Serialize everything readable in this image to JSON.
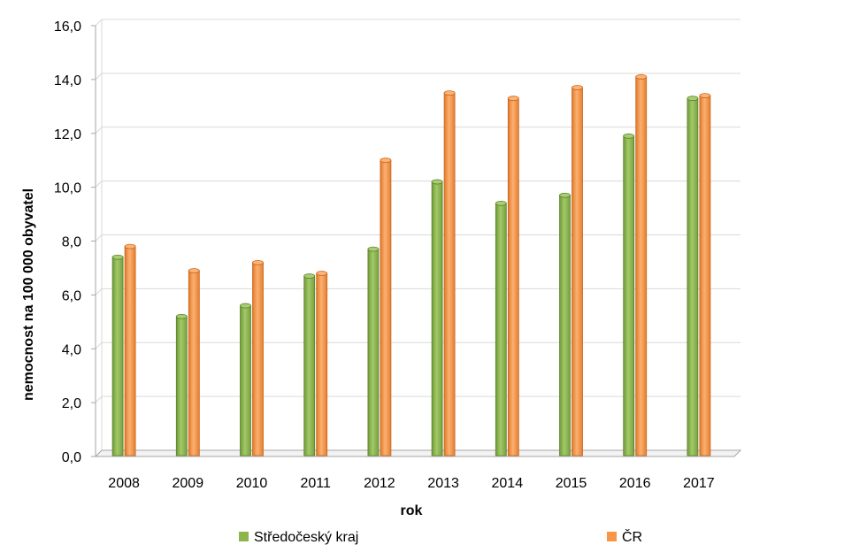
{
  "chart_data": {
    "type": "bar",
    "title": "",
    "xlabel": "rok",
    "ylabel": "nemocnost na 100 000 obyvatel",
    "categories": [
      "2008",
      "2009",
      "2010",
      "2011",
      "2012",
      "2013",
      "2014",
      "2015",
      "2016",
      "2017"
    ],
    "series": [
      {
        "name": "Středočeský kraj",
        "values": [
          7.4,
          5.2,
          5.6,
          6.7,
          7.7,
          10.2,
          9.4,
          9.7,
          11.9,
          13.3
        ],
        "color": "#8db54c"
      },
      {
        "name": "ČR",
        "values": [
          7.8,
          6.9,
          7.2,
          6.8,
          11.0,
          13.5,
          13.3,
          13.7,
          14.1,
          13.4
        ],
        "color": "#f79646"
      }
    ],
    "yticks": [
      "0,0",
      "2,0",
      "4,0",
      "6,0",
      "8,0",
      "10,0",
      "12,0",
      "14,0",
      "16,0"
    ],
    "ylim": [
      0,
      16
    ],
    "grid": true,
    "legend_position": "bottom"
  }
}
